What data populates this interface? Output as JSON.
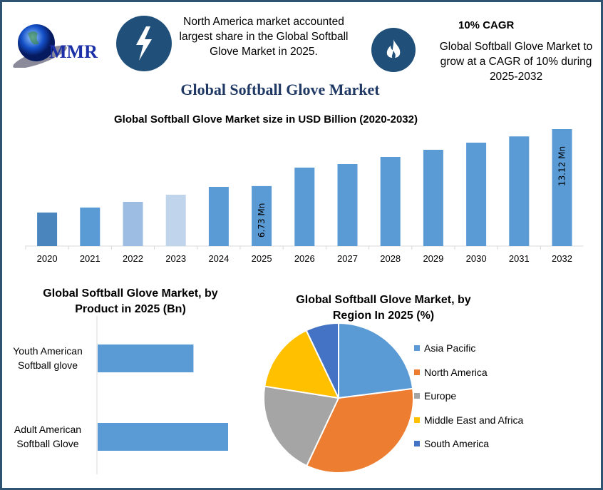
{
  "logo": {
    "text": "MMR"
  },
  "header": {
    "left_text": "North America market accounted largest share in the Global Softball Glove Market in 2025.",
    "right_heading": "10% CAGR",
    "right_text": "Global Softball Glove Market to grow at a CAGR of 10% during 2025-2032",
    "icons": [
      "lightning-icon",
      "flame-icon"
    ]
  },
  "title": "Global Softball Glove Market",
  "chart_data": [
    {
      "type": "bar",
      "title": "Global Softball Glove Market size in USD Billion (2020-2032)",
      "categories": [
        "2020",
        "2021",
        "2022",
        "2023",
        "2024",
        "2025",
        "2026",
        "2027",
        "2028",
        "2029",
        "2030",
        "2031",
        "2032"
      ],
      "values": [
        3.76,
        4.32,
        4.96,
        5.76,
        6.64,
        6.73,
        8.8,
        9.2,
        10.0,
        10.8,
        11.6,
        12.3,
        13.12
      ],
      "colors": [
        "#4a86bd",
        "#5b9bd5",
        "#9dbde3",
        "#c0d4ec",
        "#5b9bd5",
        "#5b9bd5",
        "#5b9bd5",
        "#5b9bd5",
        "#5b9bd5",
        "#5b9bd5",
        "#5b9bd5",
        "#5b9bd5",
        "#5b9bd5"
      ],
      "data_labels": {
        "2025": "6.73 Mn",
        "2032": "13.12 Mn"
      },
      "ylim": [
        0,
        13.12
      ],
      "grid": false
    },
    {
      "type": "bar",
      "orientation": "horizontal",
      "title": "Global Softball Glove Market, by Product in 2025 (Bn)",
      "categories": [
        "Youth American Softball glove",
        "Adult American Softball Glove"
      ],
      "values": [
        2.85,
        3.88
      ],
      "color": "#5b9bd5"
    },
    {
      "type": "pie",
      "title": "Global Softball Glove Market, by Region In 2025 (%)",
      "labels": [
        "Asia Pacific",
        "North America",
        "Europe",
        "Middle East and Africa",
        "South America"
      ],
      "values": [
        23,
        34,
        20.5,
        15.4,
        7.1
      ],
      "colors": [
        "#5b9bd5",
        "#ed7d31",
        "#a5a5a5",
        "#ffc000",
        "#4472c4"
      ],
      "legend": "right"
    }
  ]
}
